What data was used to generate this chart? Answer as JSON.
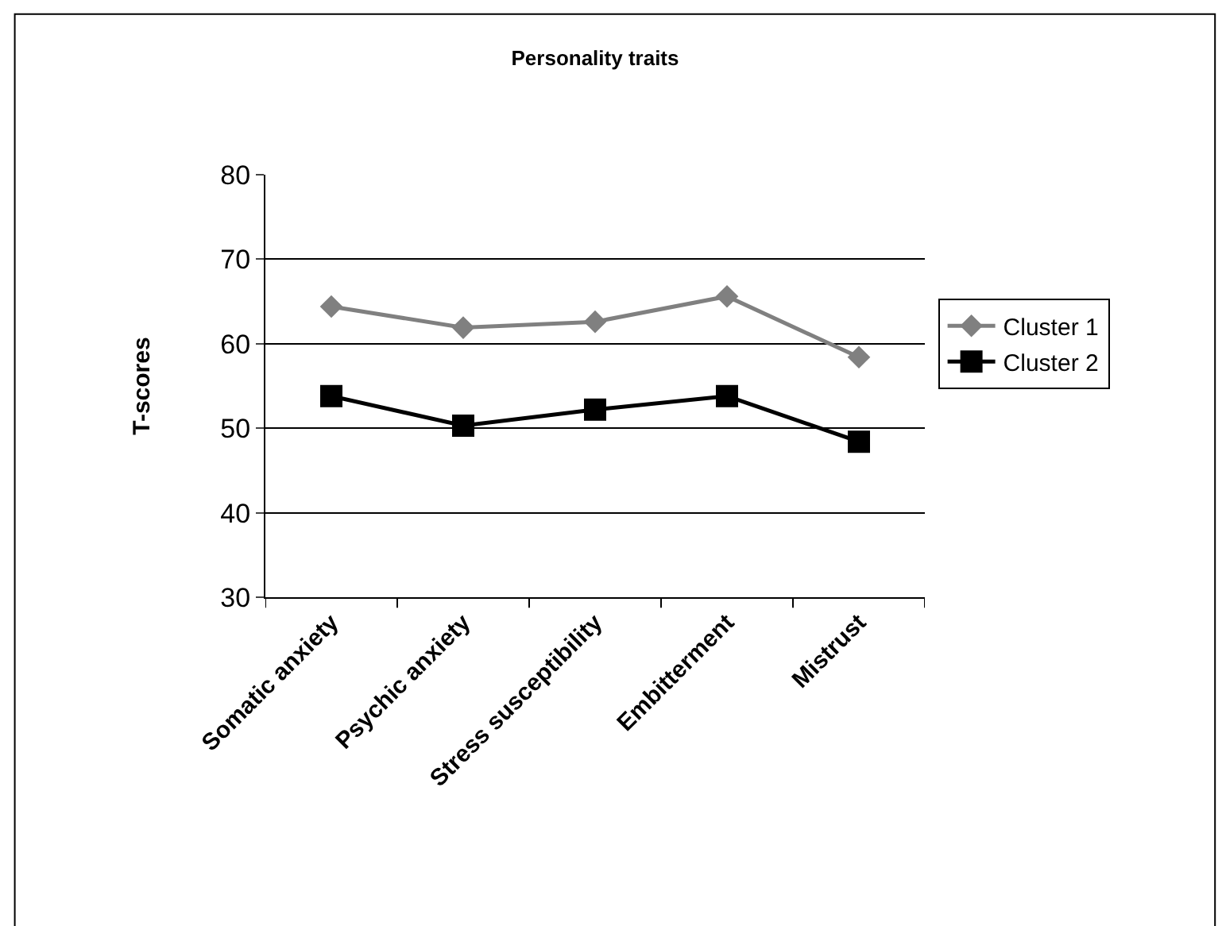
{
  "chart_data": {
    "type": "line",
    "title": "Personality traits",
    "ylabel": "T-scores",
    "categories": [
      "Somatic anxiety",
      "Psychic anxiety",
      "Stress susceptibility",
      "Embitterment",
      "Mistrust"
    ],
    "series": [
      {
        "name": "Cluster 1",
        "color": "#808080",
        "marker": "diamond",
        "values": [
          64.4,
          61.9,
          62.6,
          65.6,
          58.4
        ]
      },
      {
        "name": "Cluster 2",
        "color": "#000000",
        "marker": "square",
        "values": [
          53.8,
          50.3,
          52.2,
          53.8,
          48.4
        ]
      }
    ],
    "ylim": [
      30,
      80
    ],
    "yticks": [
      30,
      40,
      50,
      60,
      70,
      80
    ],
    "grid": "y",
    "legend": "right",
    "line_style": "solid"
  }
}
